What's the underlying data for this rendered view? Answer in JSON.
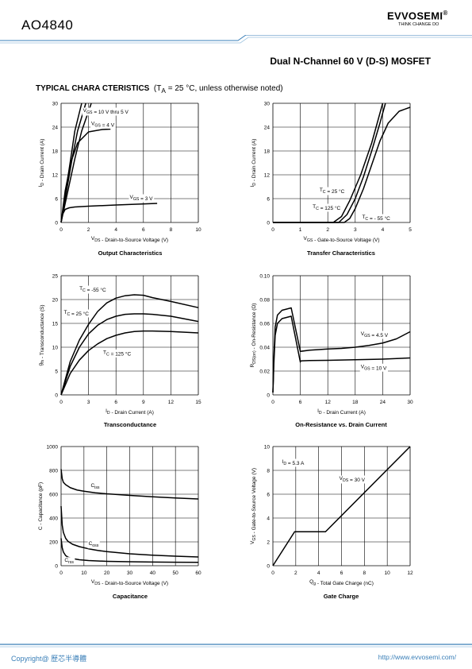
{
  "header": {
    "part_number": "AO4840",
    "brand": "EVVOSEMI",
    "registered": "®",
    "tagline": "THINK CHANGE DO",
    "title": "Dual N-Channel 60 V (D-S) MOSFET"
  },
  "section": {
    "label": "TYPICAL CHARA CTERISTICS",
    "condition": "(T",
    "condition_sub": "A",
    "condition_rest": " = 25 °C, unless otherwise noted)"
  },
  "colors": {
    "accent": "#3a7fb8",
    "line": "#000000"
  },
  "footer": {
    "copyright": "Copyright@ 歷芯半導體",
    "url": "http://www.evvosemi.com/"
  },
  "chart_data": [
    {
      "id": "output",
      "type": "line",
      "caption": "Output Characteristics",
      "xlabel": [
        [
          "V",
          ""
        ],
        [
          "DS",
          "sub"
        ],
        [
          " - Drain-to-Source Voltage (V)",
          ""
        ]
      ],
      "ylabel": [
        [
          "I",
          ""
        ],
        [
          "D",
          "sub"
        ],
        [
          " - Drain Current (A)",
          ""
        ]
      ],
      "xlim": [
        0,
        10
      ],
      "ylim": [
        0,
        30
      ],
      "xticks": [
        "0",
        "2",
        "4",
        "6",
        "8",
        "10"
      ],
      "yticks": [
        "0",
        "6",
        "12",
        "18",
        "24",
        "30"
      ],
      "series": [
        {
          "x": [
            0,
            0.35,
            0.7,
            1.0,
            1.5
          ],
          "y": [
            0,
            8,
            16,
            23,
            30
          ]
        },
        {
          "x": [
            0,
            0.4,
            0.8,
            1.2,
            1.8
          ],
          "y": [
            0,
            8,
            16,
            23,
            30
          ]
        },
        {
          "x": [
            0,
            0.5,
            1.0,
            1.5,
            2.2
          ],
          "y": [
            0,
            8,
            16,
            23,
            30
          ]
        },
        {
          "x": [
            0,
            0.3,
            0.7,
            1.2,
            2.0,
            3.0,
            3.6
          ],
          "y": [
            0,
            8,
            15,
            20,
            22.8,
            23.4,
            23.5
          ]
        },
        {
          "x": [
            0,
            0.1,
            0.3,
            0.6,
            1.0,
            2.0,
            4.0,
            7.0
          ],
          "y": [
            0,
            2,
            3.3,
            3.7,
            3.9,
            4.1,
            4.4,
            4.8
          ]
        }
      ],
      "annotations": [
        {
          "text": [
            [
              "V",
              ""
            ],
            [
              "GS",
              "sub"
            ],
            [
              " = 10 V thru 5 V",
              ""
            ]
          ],
          "x": 1.6,
          "y": 27.8
        },
        {
          "text": [
            [
              "V",
              ""
            ],
            [
              "GS",
              "sub"
            ],
            [
              " = 4 V",
              ""
            ]
          ],
          "x": 2.2,
          "y": 24.5
        },
        {
          "text": [
            [
              "V",
              ""
            ],
            [
              "GS",
              "sub"
            ],
            [
              " = 3 V",
              ""
            ]
          ],
          "x": 5.0,
          "y": 6.0
        }
      ]
    },
    {
      "id": "transfer",
      "type": "line",
      "caption": "Transfer Characteristics",
      "xlabel": [
        [
          "V",
          ""
        ],
        [
          "GS",
          "sub"
        ],
        [
          " - Gate-to-Source Voltage (V)",
          ""
        ]
      ],
      "ylabel": [
        [
          "I",
          ""
        ],
        [
          "D",
          "sub"
        ],
        [
          " - Drain Current (A)",
          ""
        ]
      ],
      "xlim": [
        0,
        5
      ],
      "ylim": [
        0,
        30
      ],
      "xticks": [
        "0",
        "1",
        "2",
        "3",
        "4",
        "5"
      ],
      "yticks": [
        "0",
        "6",
        "12",
        "18",
        "24",
        "30"
      ],
      "series": [
        {
          "x": [
            0,
            2.6,
            2.8,
            3.0,
            3.3,
            3.6,
            3.9,
            4.2,
            4.6,
            5.0
          ],
          "y": [
            0,
            0,
            1,
            3.5,
            8.5,
            14.5,
            20.5,
            25,
            28,
            29
          ]
        },
        {
          "x": [
            0,
            2.4,
            2.7,
            3.0,
            3.3,
            3.6,
            3.9,
            4.1
          ],
          "y": [
            0,
            0,
            2,
            6,
            11.5,
            18,
            25,
            30
          ]
        },
        {
          "x": [
            0,
            2.2,
            2.5,
            2.8,
            3.2,
            3.6,
            4.0
          ],
          "y": [
            0,
            0,
            1.5,
            5.5,
            12,
            20,
            30
          ]
        }
      ],
      "annotations": [
        {
          "text": [
            [
              "T",
              ""
            ],
            [
              "C",
              "sub"
            ],
            [
              " = 25 °C",
              ""
            ]
          ],
          "x": 1.7,
          "y": 7.8
        },
        {
          "text": [
            [
              "T",
              ""
            ],
            [
              "C",
              "sub"
            ],
            [
              " = 125 °C",
              ""
            ]
          ],
          "x": 1.45,
          "y": 3.6
        },
        {
          "text": [
            [
              "T",
              ""
            ],
            [
              "C",
              "sub"
            ],
            [
              " = - 55 °C",
              ""
            ]
          ],
          "x": 3.25,
          "y": 1.0
        }
      ]
    },
    {
      "id": "gfs",
      "type": "line",
      "caption": "Transconductance",
      "xlabel": [
        [
          "I",
          ""
        ],
        [
          "D",
          "sub"
        ],
        [
          " - Drain Current (A)",
          ""
        ]
      ],
      "ylabel": [
        [
          "g",
          ""
        ],
        [
          "fs",
          "sub"
        ],
        [
          " - Transconductance (S)",
          ""
        ]
      ],
      "xlim": [
        0,
        15
      ],
      "ylim": [
        0,
        25
      ],
      "xticks": [
        "0",
        "3",
        "6",
        "9",
        "12",
        "15"
      ],
      "yticks": [
        "0",
        "5",
        "10",
        "15",
        "20",
        "25"
      ],
      "series": [
        {
          "x": [
            0,
            1,
            2,
            3,
            4,
            5,
            6,
            7,
            8,
            9,
            10,
            12,
            15
          ],
          "y": [
            0,
            7,
            11.5,
            14.8,
            17.5,
            19.3,
            20.3,
            20.8,
            21.0,
            20.9,
            20.4,
            19.6,
            18.3
          ]
        },
        {
          "x": [
            0,
            1,
            2,
            3,
            4,
            5,
            6,
            7,
            8,
            9,
            10,
            12,
            15
          ],
          "y": [
            0,
            6,
            10,
            12.8,
            14.6,
            15.8,
            16.5,
            16.9,
            17.0,
            17.0,
            16.9,
            16.5,
            15.4
          ]
        },
        {
          "x": [
            0,
            1,
            2,
            3,
            4,
            5,
            6,
            7,
            8,
            9,
            10,
            12,
            15
          ],
          "y": [
            0,
            4.5,
            7.3,
            9.3,
            10.7,
            11.8,
            12.5,
            13.0,
            13.3,
            13.4,
            13.4,
            13.3,
            13.0
          ]
        }
      ],
      "annotations": [
        {
          "text": [
            [
              "T",
              ""
            ],
            [
              "C",
              "sub"
            ],
            [
              " = -55 °C",
              ""
            ]
          ],
          "x": 2.0,
          "y": 22.0
        },
        {
          "text": [
            [
              "T",
              ""
            ],
            [
              "C",
              "sub"
            ],
            [
              " = 25 °C",
              ""
            ]
          ],
          "x": 0.3,
          "y": 17.0
        },
        {
          "text": [
            [
              "T",
              ""
            ],
            [
              "C",
              "sub"
            ],
            [
              " = 125 °C",
              ""
            ]
          ],
          "x": 4.6,
          "y": 8.6
        }
      ]
    },
    {
      "id": "rdson",
      "type": "line",
      "caption": "On-Resistance vs. Drain Current",
      "xlabel": [
        [
          "I",
          ""
        ],
        [
          "D",
          "sub"
        ],
        [
          " - Drain Current (A)",
          ""
        ]
      ],
      "ylabel": [
        [
          "R",
          ""
        ],
        [
          "DS(on)",
          "sub"
        ],
        [
          " - On-Resistance (Ω)",
          ""
        ]
      ],
      "xlim": [
        0,
        30
      ],
      "ylim": [
        0,
        0.1
      ],
      "xticks": [
        "0",
        "6",
        "12",
        "18",
        "24",
        "30"
      ],
      "yticks": [
        "0",
        "0.02",
        "0.04",
        "0.06",
        "0.08",
        "0.10"
      ],
      "series": [
        {
          "x": [
            0,
            0.1,
            0.2,
            0.5,
            1,
            2,
            4,
            6,
            8,
            12,
            15,
            18,
            21,
            24,
            27,
            30
          ],
          "y": [
            0.002,
            0.015,
            0.03,
            0.057,
            0.067,
            0.071,
            0.073,
            0.0365,
            0.0375,
            0.0385,
            0.039,
            0.04,
            0.0415,
            0.0435,
            0.047,
            0.053
          ]
        },
        {
          "x": [
            0,
            0.1,
            0.2,
            0.5,
            1,
            2,
            4,
            6,
            6.01,
            8,
            12,
            18,
            24,
            30
          ],
          "y": [
            0.002,
            0.012,
            0.025,
            0.05,
            0.06,
            0.064,
            0.066,
            0.0275,
            0.0285,
            0.0288,
            0.029,
            0.0295,
            0.03,
            0.031
          ]
        }
      ],
      "annotations": [
        {
          "text": [
            [
              "V",
              ""
            ],
            [
              "GS",
              "sub"
            ],
            [
              " = 4.5 V",
              ""
            ]
          ],
          "x": 19.2,
          "y": 0.05
        },
        {
          "text": [
            [
              "V",
              ""
            ],
            [
              "GS",
              "sub"
            ],
            [
              " = 10 V",
              ""
            ]
          ],
          "x": 19.2,
          "y": 0.0225
        }
      ]
    },
    {
      "id": "cap",
      "type": "line",
      "caption": "Capacitance",
      "xlabel": [
        [
          "V",
          ""
        ],
        [
          "DS",
          "sub"
        ],
        [
          " - Drain-to-Source Voltage (V)",
          ""
        ]
      ],
      "ylabel": [
        [
          "C - Capacitance (pF)",
          ""
        ]
      ],
      "xlim": [
        0,
        60
      ],
      "ylim": [
        0,
        1000
      ],
      "xticks": [
        "0",
        "10",
        "20",
        "30",
        "40",
        "50",
        "60"
      ],
      "yticks": [
        "0",
        "200",
        "400",
        "600",
        "800",
        "1000"
      ],
      "series": [
        {
          "x": [
            0,
            0.5,
            1,
            2,
            4,
            7,
            10,
            15,
            20,
            30,
            40,
            50,
            60
          ],
          "y": [
            810,
            730,
            700,
            680,
            655,
            635,
            625,
            612,
            603,
            590,
            578,
            568,
            560
          ]
        },
        {
          "x": [
            0,
            0.5,
            1,
            2,
            3,
            5,
            8,
            12,
            16,
            20,
            30,
            40,
            50,
            60
          ],
          "y": [
            500,
            340,
            280,
            230,
            205,
            180,
            160,
            142,
            128,
            118,
            100,
            88,
            80,
            73
          ]
        },
        {
          "x": [
            0,
            0.5,
            1,
            2,
            3,
            5,
            8,
            12,
            20,
            30,
            40,
            50,
            60
          ],
          "y": [
            230,
            150,
            115,
            85,
            72,
            60,
            50,
            43,
            37,
            33,
            31,
            29,
            28
          ]
        }
      ],
      "annotations": [
        {
          "text": [
            [
              "C",
              ""
            ],
            [
              "iss",
              "sub"
            ]
          ],
          "x": 13,
          "y": 660
        },
        {
          "text": [
            [
              "C",
              ""
            ],
            [
              "oss",
              "sub"
            ]
          ],
          "x": 12,
          "y": 175
        },
        {
          "text": [
            [
              "C",
              ""
            ],
            [
              "rss",
              "sub"
            ]
          ],
          "x": 1.5,
          "y": 35
        }
      ]
    },
    {
      "id": "gate",
      "type": "line",
      "caption": "Gate Charge",
      "xlabel": [
        [
          "Q",
          ""
        ],
        [
          "g",
          "sub"
        ],
        [
          " - Total Gate Charge (nC)",
          ""
        ]
      ],
      "ylabel": [
        [
          "V",
          ""
        ],
        [
          "GS",
          "sub"
        ],
        [
          " - Gate-to-Source Voltage (V)",
          ""
        ]
      ],
      "xlim": [
        0,
        12
      ],
      "ylim": [
        0,
        10
      ],
      "xticks": [
        "0",
        "2",
        "4",
        "6",
        "8",
        "10",
        "12"
      ],
      "yticks": [
        "0",
        "2",
        "4",
        "6",
        "8",
        "10"
      ],
      "series": [
        {
          "x": [
            0,
            1.9,
            4.6,
            12
          ],
          "y": [
            0,
            2.85,
            2.85,
            10
          ]
        }
      ],
      "annotations": [
        {
          "text": [
            [
              "I",
              ""
            ],
            [
              "D",
              "sub"
            ],
            [
              " = 5.3 A",
              ""
            ]
          ],
          "x": 0.8,
          "y": 8.6
        },
        {
          "text": [
            [
              "V",
              ""
            ],
            [
              "DS",
              "sub"
            ],
            [
              " = 30 V",
              ""
            ]
          ],
          "x": 5.8,
          "y": 7.2
        }
      ]
    }
  ]
}
